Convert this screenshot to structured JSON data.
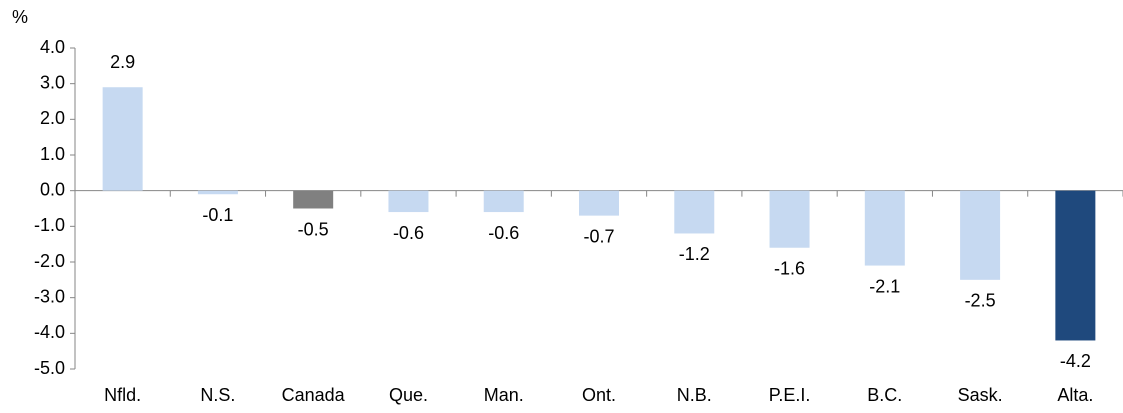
{
  "chart_data": {
    "type": "bar",
    "y_label": "%",
    "categories": [
      "Nfld.",
      "N.S.",
      "Canada",
      "Que.",
      "Man.",
      "Ont.",
      "N.B.",
      "P.E.I.",
      "B.C.",
      "Sask.",
      "Alta."
    ],
    "values": [
      2.9,
      -0.1,
      -0.5,
      -0.6,
      -0.6,
      -0.7,
      -1.2,
      -1.6,
      -2.1,
      -2.5,
      -4.2
    ],
    "colors": [
      "#c6d9f1",
      "#c6d9f1",
      "#808080",
      "#c6d9f1",
      "#c6d9f1",
      "#c6d9f1",
      "#c6d9f1",
      "#c6d9f1",
      "#c6d9f1",
      "#c6d9f1",
      "#1f497d"
    ],
    "ylim": [
      -5,
      4
    ],
    "yticks": [
      {
        "value": 4,
        "label": "4.0"
      },
      {
        "value": 3,
        "label": "3.0"
      },
      {
        "value": 2,
        "label": "2.0"
      },
      {
        "value": 1,
        "label": "1.0"
      },
      {
        "value": 0,
        "label": "0.0"
      },
      {
        "value": -1,
        "label": "-1.0"
      },
      {
        "value": -2,
        "label": "-2.0"
      },
      {
        "value": -3,
        "label": "-3.0"
      },
      {
        "value": -4,
        "label": "-4.0"
      },
      {
        "value": -5,
        "label": "-5.0"
      }
    ],
    "grid": false
  }
}
